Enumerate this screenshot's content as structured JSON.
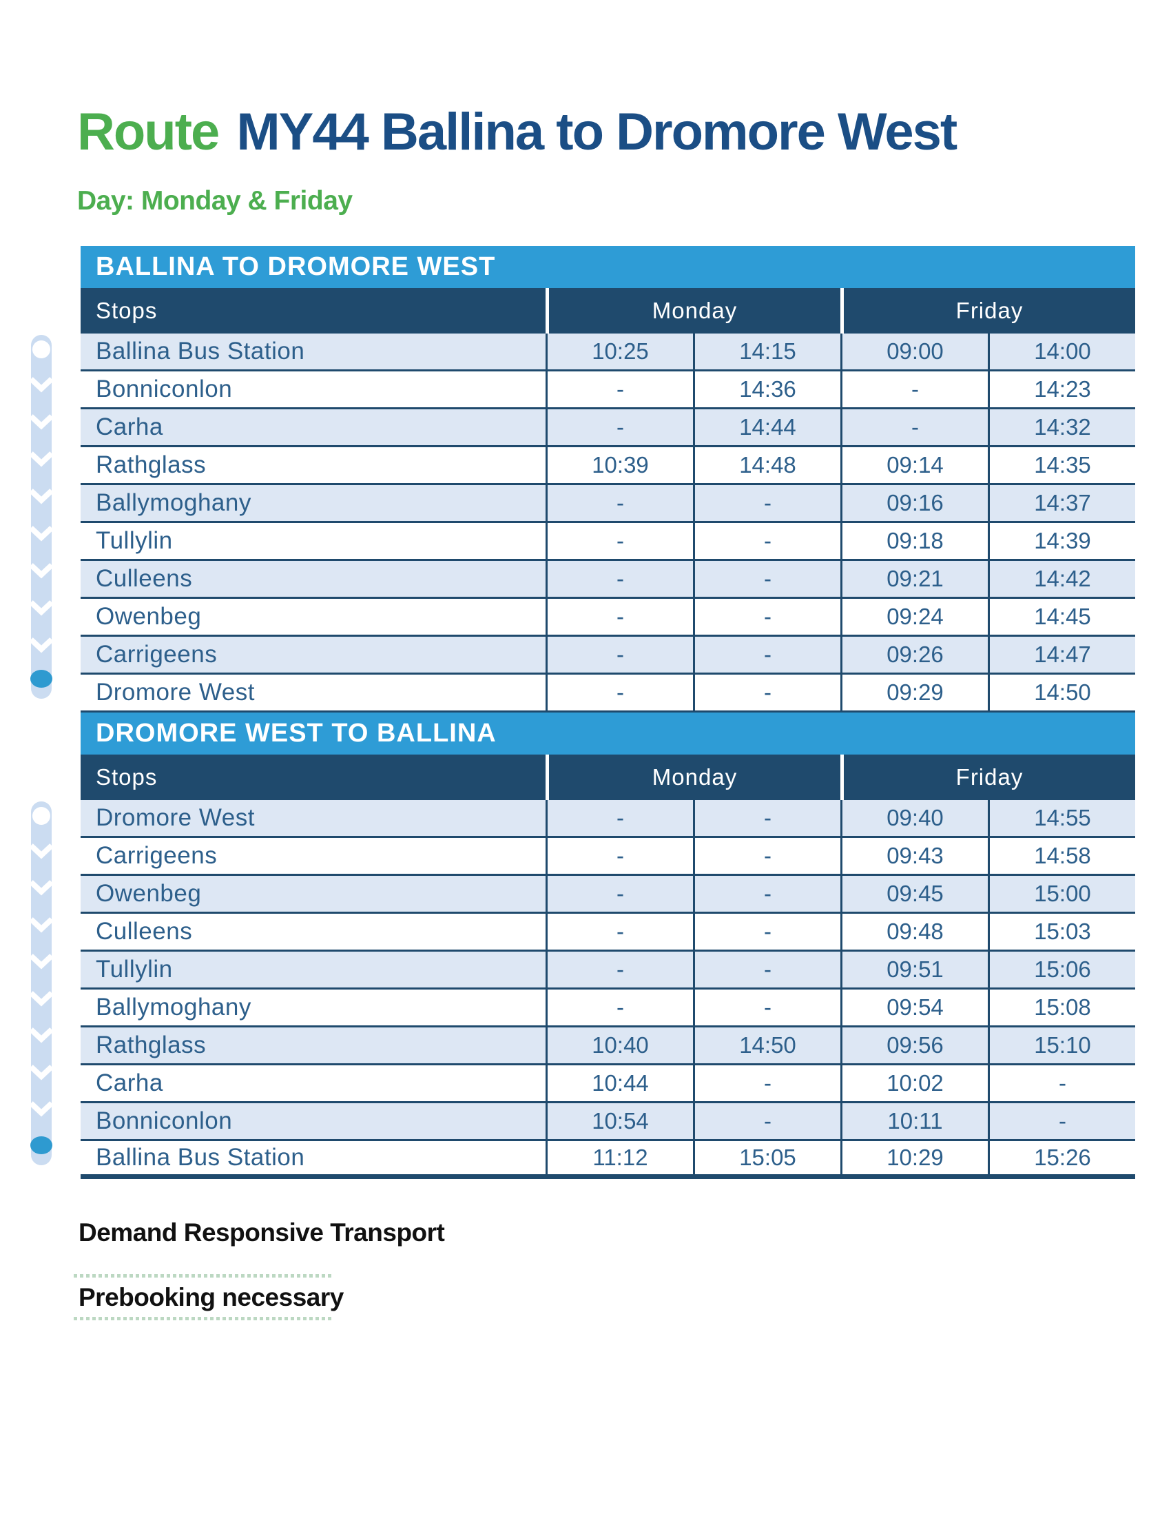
{
  "header": {
    "route_label": "Route",
    "route_title": "MY44 Ballina to Dromore West",
    "day_label": "Day: Monday & Friday"
  },
  "tables": [
    {
      "section_title": "BALLINA TO DROMORE WEST",
      "columns": {
        "stops": "Stops",
        "monday": "Monday",
        "friday": "Friday"
      },
      "rows": [
        {
          "stop": "Ballina Bus Station",
          "times": [
            "10:25",
            "14:15",
            "09:00",
            "14:00"
          ]
        },
        {
          "stop": "Bonniconlon",
          "times": [
            "-",
            "14:36",
            "-",
            "14:23"
          ]
        },
        {
          "stop": "Carha",
          "times": [
            "-",
            "14:44",
            "-",
            "14:32"
          ]
        },
        {
          "stop": "Rathglass",
          "times": [
            "10:39",
            "14:48",
            "09:14",
            "14:35"
          ]
        },
        {
          "stop": "Ballymoghany",
          "times": [
            "-",
            "-",
            "09:16",
            "14:37"
          ]
        },
        {
          "stop": "Tullylin",
          "times": [
            "-",
            "-",
            "09:18",
            "14:39"
          ]
        },
        {
          "stop": "Culleens",
          "times": [
            "-",
            "-",
            "09:21",
            "14:42"
          ]
        },
        {
          "stop": "Owenbeg",
          "times": [
            "-",
            "-",
            "09:24",
            "14:45"
          ]
        },
        {
          "stop": "Carrigeens",
          "times": [
            "-",
            "-",
            "09:26",
            "14:47"
          ]
        },
        {
          "stop": "Dromore West",
          "times": [
            "-",
            "-",
            "09:29",
            "14:50"
          ]
        }
      ]
    },
    {
      "section_title": "DROMORE WEST TO BALLINA",
      "columns": {
        "stops": "Stops",
        "monday": "Monday",
        "friday": "Friday"
      },
      "rows": [
        {
          "stop": "Dromore West",
          "times": [
            "-",
            "-",
            "09:40",
            "14:55"
          ]
        },
        {
          "stop": "Carrigeens",
          "times": [
            "-",
            "-",
            "09:43",
            "14:58"
          ]
        },
        {
          "stop": "Owenbeg",
          "times": [
            "-",
            "-",
            "09:45",
            "15:00"
          ]
        },
        {
          "stop": "Culleens",
          "times": [
            "-",
            "-",
            "09:48",
            "15:03"
          ]
        },
        {
          "stop": "Tullylin",
          "times": [
            "-",
            "-",
            "09:51",
            "15:06"
          ]
        },
        {
          "stop": "Ballymoghany",
          "times": [
            "-",
            "-",
            "09:54",
            "15:08"
          ]
        },
        {
          "stop": "Rathglass",
          "times": [
            "10:40",
            "14:50",
            "09:56",
            "15:10"
          ]
        },
        {
          "stop": "Carha",
          "times": [
            "10:44",
            "-",
            "10:02",
            "-"
          ]
        },
        {
          "stop": "Bonniconlon",
          "times": [
            "10:54",
            "-",
            "10:11",
            "-"
          ]
        },
        {
          "stop": "Ballina Bus Station",
          "times": [
            "11:12",
            "15:05",
            "10:29",
            "15:26"
          ]
        }
      ]
    }
  ],
  "footer": {
    "drt_label": "Demand Responsive Transport",
    "prebooking_label": "Prebooking necessary"
  },
  "colors": {
    "accent_blue": "#2E9CD6",
    "header_navy": "#1F4A6D",
    "row_alt_blue": "#DDE7F4",
    "cell_text_blue": "#2D5F8B",
    "title_navy": "#1B4E85",
    "brand_green": "#4CAE4F",
    "dotted_line_green": "#BCD8C2",
    "route_strip_blue": "#CBDCF1"
  }
}
